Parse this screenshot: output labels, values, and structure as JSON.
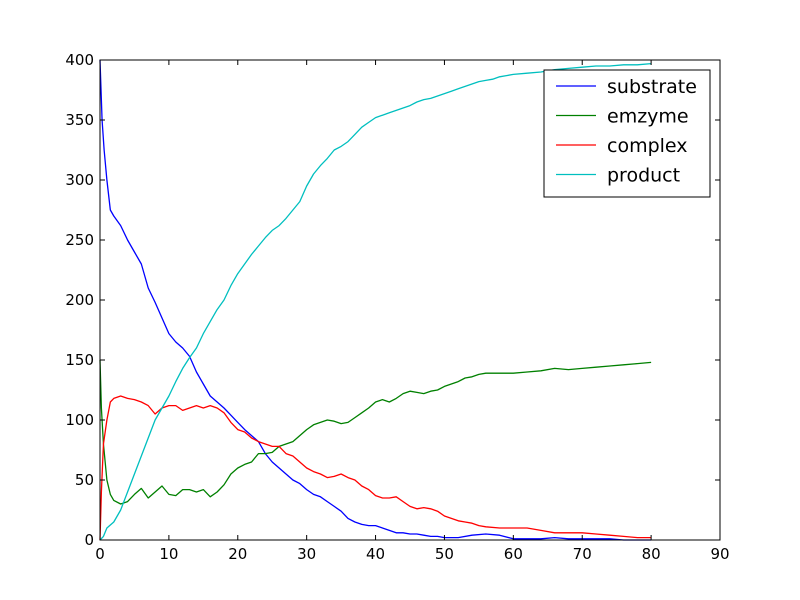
{
  "chart_data": {
    "type": "line",
    "title": "",
    "xlabel": "",
    "ylabel": "",
    "xlim": [
      0,
      90
    ],
    "ylim": [
      0,
      400
    ],
    "x_ticks": [
      0,
      10,
      20,
      30,
      40,
      50,
      60,
      70,
      80,
      90
    ],
    "y_ticks": [
      0,
      50,
      100,
      150,
      200,
      250,
      300,
      350,
      400
    ],
    "grid": false,
    "legend_position": "top-right",
    "series": [
      {
        "name": "substrate",
        "color": "#0000ff",
        "points": [
          [
            0,
            400
          ],
          [
            0.3,
            350
          ],
          [
            0.6,
            325
          ],
          [
            1,
            300
          ],
          [
            1.5,
            275
          ],
          [
            2,
            270
          ],
          [
            3,
            262
          ],
          [
            4,
            250
          ],
          [
            5,
            240
          ],
          [
            6,
            230
          ],
          [
            7,
            210
          ],
          [
            8,
            198
          ],
          [
            9,
            185
          ],
          [
            10,
            172
          ],
          [
            11,
            165
          ],
          [
            12,
            160
          ],
          [
            13,
            153
          ],
          [
            14,
            140
          ],
          [
            15,
            130
          ],
          [
            16,
            120
          ],
          [
            17,
            115
          ],
          [
            18,
            110
          ],
          [
            19,
            104
          ],
          [
            20,
            98
          ],
          [
            21,
            92
          ],
          [
            22,
            87
          ],
          [
            23,
            82
          ],
          [
            24,
            72
          ],
          [
            25,
            65
          ],
          [
            26,
            60
          ],
          [
            27,
            55
          ],
          [
            28,
            50
          ],
          [
            29,
            47
          ],
          [
            30,
            42
          ],
          [
            31,
            38
          ],
          [
            32,
            36
          ],
          [
            33,
            32
          ],
          [
            34,
            28
          ],
          [
            35,
            24
          ],
          [
            36,
            18
          ],
          [
            37,
            15
          ],
          [
            38,
            13
          ],
          [
            39,
            12
          ],
          [
            40,
            12
          ],
          [
            41,
            10
          ],
          [
            42,
            8
          ],
          [
            43,
            6
          ],
          [
            44,
            6
          ],
          [
            45,
            5
          ],
          [
            46,
            5
          ],
          [
            47,
            4
          ],
          [
            48,
            3
          ],
          [
            49,
            3
          ],
          [
            50,
            2
          ],
          [
            52,
            2
          ],
          [
            54,
            4
          ],
          [
            56,
            5
          ],
          [
            58,
            4
          ],
          [
            60,
            1
          ],
          [
            62,
            1
          ],
          [
            64,
            1
          ],
          [
            66,
            2
          ],
          [
            68,
            1
          ],
          [
            70,
            1
          ],
          [
            72,
            1
          ],
          [
            74,
            1
          ],
          [
            76,
            0
          ],
          [
            78,
            0
          ],
          [
            80,
            0
          ]
        ]
      },
      {
        "name": "emzyme",
        "color": "#008000",
        "points": [
          [
            0,
            150
          ],
          [
            0.2,
            110
          ],
          [
            0.5,
            80
          ],
          [
            1,
            50
          ],
          [
            1.5,
            38
          ],
          [
            2,
            33
          ],
          [
            3,
            30
          ],
          [
            4,
            32
          ],
          [
            5,
            38
          ],
          [
            6,
            43
          ],
          [
            7,
            35
          ],
          [
            8,
            40
          ],
          [
            9,
            45
          ],
          [
            10,
            38
          ],
          [
            11,
            37
          ],
          [
            12,
            42
          ],
          [
            13,
            42
          ],
          [
            14,
            40
          ],
          [
            15,
            42
          ],
          [
            16,
            36
          ],
          [
            17,
            40
          ],
          [
            18,
            46
          ],
          [
            19,
            55
          ],
          [
            20,
            60
          ],
          [
            21,
            63
          ],
          [
            22,
            65
          ],
          [
            23,
            72
          ],
          [
            24,
            72
          ],
          [
            25,
            73
          ],
          [
            26,
            78
          ],
          [
            27,
            80
          ],
          [
            28,
            82
          ],
          [
            29,
            87
          ],
          [
            30,
            92
          ],
          [
            31,
            96
          ],
          [
            32,
            98
          ],
          [
            33,
            100
          ],
          [
            34,
            99
          ],
          [
            35,
            97
          ],
          [
            36,
            98
          ],
          [
            37,
            102
          ],
          [
            38,
            106
          ],
          [
            39,
            110
          ],
          [
            40,
            115
          ],
          [
            41,
            117
          ],
          [
            42,
            115
          ],
          [
            43,
            118
          ],
          [
            44,
            122
          ],
          [
            45,
            124
          ],
          [
            46,
            123
          ],
          [
            47,
            122
          ],
          [
            48,
            124
          ],
          [
            49,
            125
          ],
          [
            50,
            128
          ],
          [
            51,
            130
          ],
          [
            52,
            132
          ],
          [
            53,
            135
          ],
          [
            54,
            136
          ],
          [
            55,
            138
          ],
          [
            56,
            139
          ],
          [
            57,
            139
          ],
          [
            58,
            139
          ],
          [
            60,
            139
          ],
          [
            62,
            140
          ],
          [
            64,
            141
          ],
          [
            66,
            143
          ],
          [
            68,
            142
          ],
          [
            70,
            143
          ],
          [
            72,
            144
          ],
          [
            74,
            145
          ],
          [
            76,
            146
          ],
          [
            78,
            147
          ],
          [
            80,
            148
          ]
        ]
      },
      {
        "name": "complex",
        "color": "#ff0000",
        "points": [
          [
            0,
            0
          ],
          [
            0.2,
            40
          ],
          [
            0.5,
            80
          ],
          [
            1,
            100
          ],
          [
            1.5,
            115
          ],
          [
            2,
            118
          ],
          [
            3,
            120
          ],
          [
            4,
            118
          ],
          [
            5,
            117
          ],
          [
            6,
            115
          ],
          [
            7,
            112
          ],
          [
            8,
            105
          ],
          [
            9,
            110
          ],
          [
            10,
            112
          ],
          [
            11,
            112
          ],
          [
            12,
            108
          ],
          [
            13,
            110
          ],
          [
            14,
            112
          ],
          [
            15,
            110
          ],
          [
            16,
            112
          ],
          [
            17,
            110
          ],
          [
            18,
            106
          ],
          [
            19,
            98
          ],
          [
            20,
            92
          ],
          [
            21,
            90
          ],
          [
            22,
            85
          ],
          [
            23,
            82
          ],
          [
            24,
            80
          ],
          [
            25,
            78
          ],
          [
            26,
            78
          ],
          [
            27,
            72
          ],
          [
            28,
            70
          ],
          [
            29,
            65
          ],
          [
            30,
            60
          ],
          [
            31,
            57
          ],
          [
            32,
            55
          ],
          [
            33,
            52
          ],
          [
            34,
            53
          ],
          [
            35,
            55
          ],
          [
            36,
            52
          ],
          [
            37,
            50
          ],
          [
            38,
            45
          ],
          [
            39,
            42
          ],
          [
            40,
            37
          ],
          [
            41,
            35
          ],
          [
            42,
            35
          ],
          [
            43,
            36
          ],
          [
            44,
            32
          ],
          [
            45,
            28
          ],
          [
            46,
            26
          ],
          [
            47,
            27
          ],
          [
            48,
            26
          ],
          [
            49,
            24
          ],
          [
            50,
            20
          ],
          [
            51,
            18
          ],
          [
            52,
            16
          ],
          [
            53,
            15
          ],
          [
            54,
            14
          ],
          [
            55,
            12
          ],
          [
            56,
            11
          ],
          [
            58,
            10
          ],
          [
            60,
            10
          ],
          [
            62,
            10
          ],
          [
            64,
            8
          ],
          [
            66,
            6
          ],
          [
            68,
            6
          ],
          [
            70,
            6
          ],
          [
            72,
            5
          ],
          [
            74,
            4
          ],
          [
            76,
            3
          ],
          [
            78,
            2
          ],
          [
            80,
            2
          ]
        ]
      },
      {
        "name": "product",
        "color": "#00bfbf",
        "points": [
          [
            0,
            0
          ],
          [
            0.5,
            3
          ],
          [
            1,
            10
          ],
          [
            2,
            15
          ],
          [
            3,
            25
          ],
          [
            4,
            40
          ],
          [
            5,
            55
          ],
          [
            6,
            70
          ],
          [
            7,
            85
          ],
          [
            8,
            100
          ],
          [
            9,
            110
          ],
          [
            10,
            120
          ],
          [
            11,
            132
          ],
          [
            12,
            143
          ],
          [
            13,
            152
          ],
          [
            14,
            160
          ],
          [
            15,
            172
          ],
          [
            16,
            182
          ],
          [
            17,
            192
          ],
          [
            18,
            200
          ],
          [
            19,
            212
          ],
          [
            20,
            222
          ],
          [
            21,
            230
          ],
          [
            22,
            238
          ],
          [
            23,
            245
          ],
          [
            24,
            252
          ],
          [
            25,
            258
          ],
          [
            26,
            262
          ],
          [
            27,
            268
          ],
          [
            28,
            275
          ],
          [
            29,
            282
          ],
          [
            30,
            295
          ],
          [
            31,
            305
          ],
          [
            32,
            312
          ],
          [
            33,
            318
          ],
          [
            34,
            325
          ],
          [
            35,
            328
          ],
          [
            36,
            332
          ],
          [
            37,
            338
          ],
          [
            38,
            344
          ],
          [
            39,
            348
          ],
          [
            40,
            352
          ],
          [
            41,
            354
          ],
          [
            42,
            356
          ],
          [
            43,
            358
          ],
          [
            44,
            360
          ],
          [
            45,
            362
          ],
          [
            46,
            365
          ],
          [
            47,
            367
          ],
          [
            48,
            368
          ],
          [
            49,
            370
          ],
          [
            50,
            372
          ],
          [
            51,
            374
          ],
          [
            52,
            376
          ],
          [
            53,
            378
          ],
          [
            54,
            380
          ],
          [
            55,
            382
          ],
          [
            56,
            383
          ],
          [
            57,
            384
          ],
          [
            58,
            386
          ],
          [
            59,
            387
          ],
          [
            60,
            388
          ],
          [
            62,
            389
          ],
          [
            64,
            390
          ],
          [
            66,
            392
          ],
          [
            68,
            393
          ],
          [
            70,
            394
          ],
          [
            72,
            395
          ],
          [
            74,
            395
          ],
          [
            76,
            396
          ],
          [
            78,
            396
          ],
          [
            80,
            397
          ]
        ]
      }
    ]
  }
}
